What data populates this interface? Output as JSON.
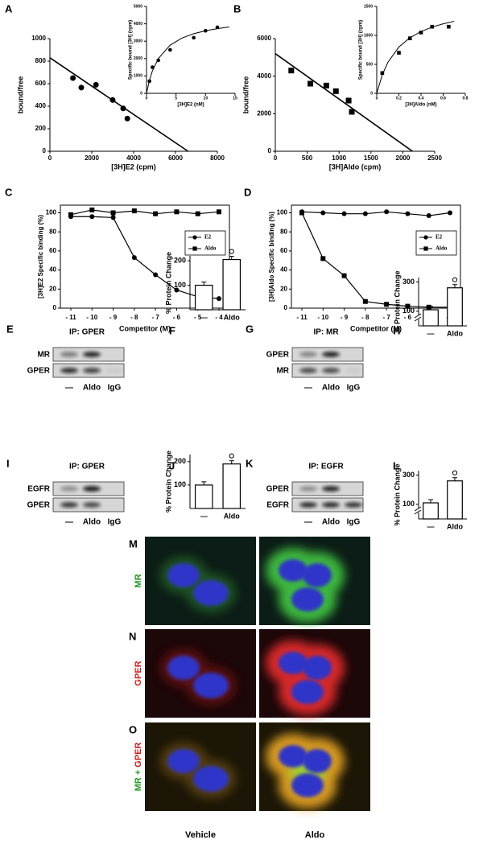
{
  "chart_data": [
    {
      "type": "scatter",
      "panel": "A",
      "xlabel": "[3H]E2 (cpm)",
      "ylabel": "bound/free",
      "marker": "circle",
      "color": "#000000",
      "x": [
        1100,
        1500,
        2200,
        3000,
        3500,
        3700
      ],
      "values": [
        650,
        565,
        590,
        455,
        380,
        290
      ],
      "xlim": [
        0,
        8000
      ],
      "xticks": [
        0,
        2000,
        4000,
        6000,
        8000
      ],
      "ylim": [
        0,
        1000
      ],
      "yticks": [
        0,
        200,
        400,
        600,
        800,
        1000
      ],
      "fit_x": [
        0,
        6600
      ],
      "fit_y": [
        830,
        0
      ]
    },
    {
      "type": "scatter",
      "xlabel": "[3H]E2 (nM)",
      "ylabel": "Specific bound [3H] (cpm)",
      "marker": "circle",
      "color": "#000000",
      "x": [
        0.5,
        1,
        2,
        4,
        8,
        10,
        12
      ],
      "values": [
        700,
        1500,
        1900,
        2500,
        3200,
        3600,
        3800
      ],
      "xlim": [
        0,
        15
      ],
      "xticks": [
        0,
        5,
        10,
        15
      ],
      "ylim": [
        0,
        5000
      ],
      "yticks": [
        0,
        1000,
        2000,
        3000,
        4000,
        5000
      ],
      "fit_x": [
        0,
        0.5,
        1,
        2,
        4,
        6,
        8,
        10,
        12,
        14
      ],
      "fit_y": [
        0,
        750,
        1290,
        2000,
        2770,
        3180,
        3430,
        3600,
        3720,
        3820
      ]
    },
    {
      "type": "scatter",
      "panel": "B",
      "xlabel": "[3H]Aldo (cpm)",
      "ylabel": "bound/free",
      "marker": "square",
      "color": "#000000",
      "x": [
        250,
        550,
        800,
        950,
        1150,
        1200
      ],
      "values": [
        4300,
        3600,
        3500,
        3200,
        2700,
        2100
      ],
      "xlim": [
        0,
        2500
      ],
      "xticks": [
        0,
        500,
        1000,
        1500,
        2000,
        2500
      ],
      "ylim": [
        0,
        6000
      ],
      "yticks": [
        0,
        2000,
        4000,
        6000
      ],
      "fit_x": [
        0,
        2150
      ],
      "fit_y": [
        5200,
        0
      ]
    },
    {
      "type": "scatter",
      "xlabel": "[3H]Aldo (nM)",
      "ylabel": "Specific bound [3H] (cpm)",
      "marker": "square",
      "color": "#000000",
      "x": [
        0.05,
        0.2,
        0.3,
        0.4,
        0.5,
        0.65
      ],
      "values": [
        350,
        700,
        950,
        1050,
        1150,
        1150
      ],
      "xlim": [
        0,
        0.8
      ],
      "xticks": [
        0,
        0.2,
        0.4,
        0.6,
        0.8
      ],
      "ylim": [
        0,
        1500
      ],
      "yticks": [
        0,
        500,
        1000,
        1500
      ],
      "fit_x": [
        0,
        0.05,
        0.1,
        0.2,
        0.3,
        0.4,
        0.5,
        0.6,
        0.7
      ],
      "fit_y": [
        0,
        320,
        533,
        800,
        960,
        1067,
        1143,
        1200,
        1244
      ]
    },
    {
      "type": "line",
      "panel": "C",
      "xlabel": "Competitor (M)",
      "ylabel": "[3H]E2 Specific binding (%)",
      "legend": "right",
      "categories": [
        "- 11",
        "- 10",
        "- 9",
        "- 8",
        "- 7",
        "- 6",
        "- 5",
        "- 4"
      ],
      "series": [
        {
          "name": "E2",
          "marker": "circle",
          "color": "#000000",
          "values": [
            96,
            96,
            95,
            53,
            35,
            19,
            12,
            10
          ]
        },
        {
          "name": "Aldo",
          "marker": "square",
          "color": "#000000",
          "values": [
            98,
            103,
            100,
            102,
            99,
            101,
            99,
            101
          ]
        }
      ],
      "ylim": [
        0,
        108
      ],
      "yticks": [
        0,
        20,
        40,
        60,
        80,
        100
      ]
    },
    {
      "type": "line",
      "panel": "D",
      "xlabel": "Competitor (M)",
      "ylabel": "[3H]Aldo Specific binding (%)",
      "legend": "right",
      "categories": [
        "- 11",
        "- 10",
        "- 9",
        "- 8",
        "- 7",
        "- 6",
        "- 5",
        "- 4"
      ],
      "series": [
        {
          "name": "E2",
          "marker": "circle",
          "color": "#000000",
          "values": [
            101,
            100,
            99,
            99,
            101,
            99,
            97,
            100
          ]
        },
        {
          "name": "Aldo",
          "marker": "square",
          "color": "#000000",
          "values": [
            100,
            52,
            34,
            7,
            4,
            2,
            1,
            1
          ]
        }
      ],
      "ylim": [
        0,
        108
      ],
      "yticks": [
        0,
        20,
        40,
        60,
        80,
        100
      ]
    },
    {
      "type": "bar",
      "panel": "F",
      "ylabel": "% Protein Change",
      "categories": [
        "—",
        "Aldo"
      ],
      "values": [
        100,
        205
      ],
      "color": "#ffffff",
      "ylim": [
        0,
        220
      ],
      "yticks": [
        100,
        200
      ]
    },
    {
      "type": "bar",
      "panel": "H",
      "ylabel": "% Protein Change",
      "categories": [
        "—",
        "Aldo"
      ],
      "values": [
        110,
        260
      ],
      "color": "#ffffff",
      "ylim": [
        0,
        330
      ],
      "yticks": [
        100,
        300
      ],
      "axis_break": true
    },
    {
      "type": "bar",
      "panel": "J",
      "ylabel": "% Protein Change",
      "categories": [
        "—",
        "Aldo"
      ],
      "values": [
        100,
        190
      ],
      "color": "#ffffff",
      "ylim": [
        0,
        230
      ],
      "yticks": [
        100,
        200
      ]
    },
    {
      "type": "bar",
      "panel": "L",
      "ylabel": "% Protein Change",
      "categories": [
        "—",
        "Aldo"
      ],
      "values": [
        110,
        260
      ],
      "color": "#ffffff",
      "ylim": [
        0,
        330
      ],
      "yticks": [
        100,
        300
      ],
      "axis_break": true
    }
  ],
  "blots": [
    {
      "panel": "E",
      "title": "IP: GPER",
      "rows": [
        "MR",
        "GPER"
      ],
      "lanes": [
        "—",
        "Aldo",
        "IgG"
      ]
    },
    {
      "panel": "G",
      "title": "IP: MR",
      "rows": [
        "GPER",
        "MR"
      ],
      "lanes": [
        "—",
        "Aldo",
        "IgG"
      ]
    },
    {
      "panel": "I",
      "title": "IP: GPER",
      "rows": [
        "EGFR",
        "GPER"
      ],
      "lanes": [
        "—",
        "Aldo",
        "IgG"
      ]
    },
    {
      "panel": "K",
      "title": "IP: EGFR",
      "rows": [
        "GPER",
        "EGFR"
      ],
      "lanes": [
        "—",
        "Aldo",
        "IgG"
      ]
    }
  ],
  "micrographs": {
    "rows": [
      {
        "panel": "M",
        "stain": [
          {
            "text": "MR",
            "color": "#1f9a1f"
          }
        ]
      },
      {
        "panel": "N",
        "stain": [
          {
            "text": "GPER",
            "color": "#d42020"
          }
        ]
      },
      {
        "panel": "O",
        "stain": [
          {
            "text": "MR",
            "color": "#1f9a1f"
          },
          {
            "text": "+",
            "color": "#1f9a1f"
          },
          {
            "text": "GPER",
            "color": "#d42020"
          }
        ]
      }
    ],
    "columns": [
      "Vehicle",
      "Aldo"
    ]
  }
}
